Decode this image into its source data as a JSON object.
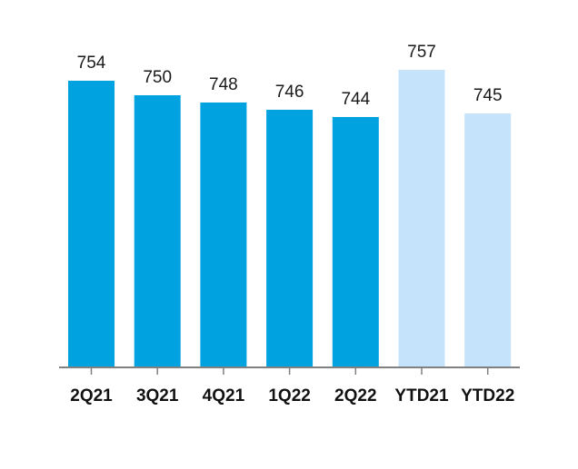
{
  "chart_data": {
    "type": "bar",
    "categories": [
      "2Q21",
      "3Q21",
      "4Q21",
      "1Q22",
      "2Q22",
      "YTD21",
      "YTD22"
    ],
    "values": [
      754,
      750,
      748,
      746,
      744,
      757,
      745
    ],
    "value_labels": [
      "754",
      "750",
      "748",
      "746",
      "744",
      "757",
      "745"
    ],
    "title": "",
    "xlabel": "",
    "ylabel": "",
    "ylim": [
      675,
      757
    ],
    "grid": false,
    "legend": "none",
    "colors": {
      "quarter": "#00a3e0",
      "ytd": "#c5e3fb",
      "axis": "#808080",
      "text": "#1a1a1a"
    },
    "bar_color_keys": [
      "quarter",
      "quarter",
      "quarter",
      "quarter",
      "quarter",
      "ytd",
      "ytd"
    ]
  }
}
